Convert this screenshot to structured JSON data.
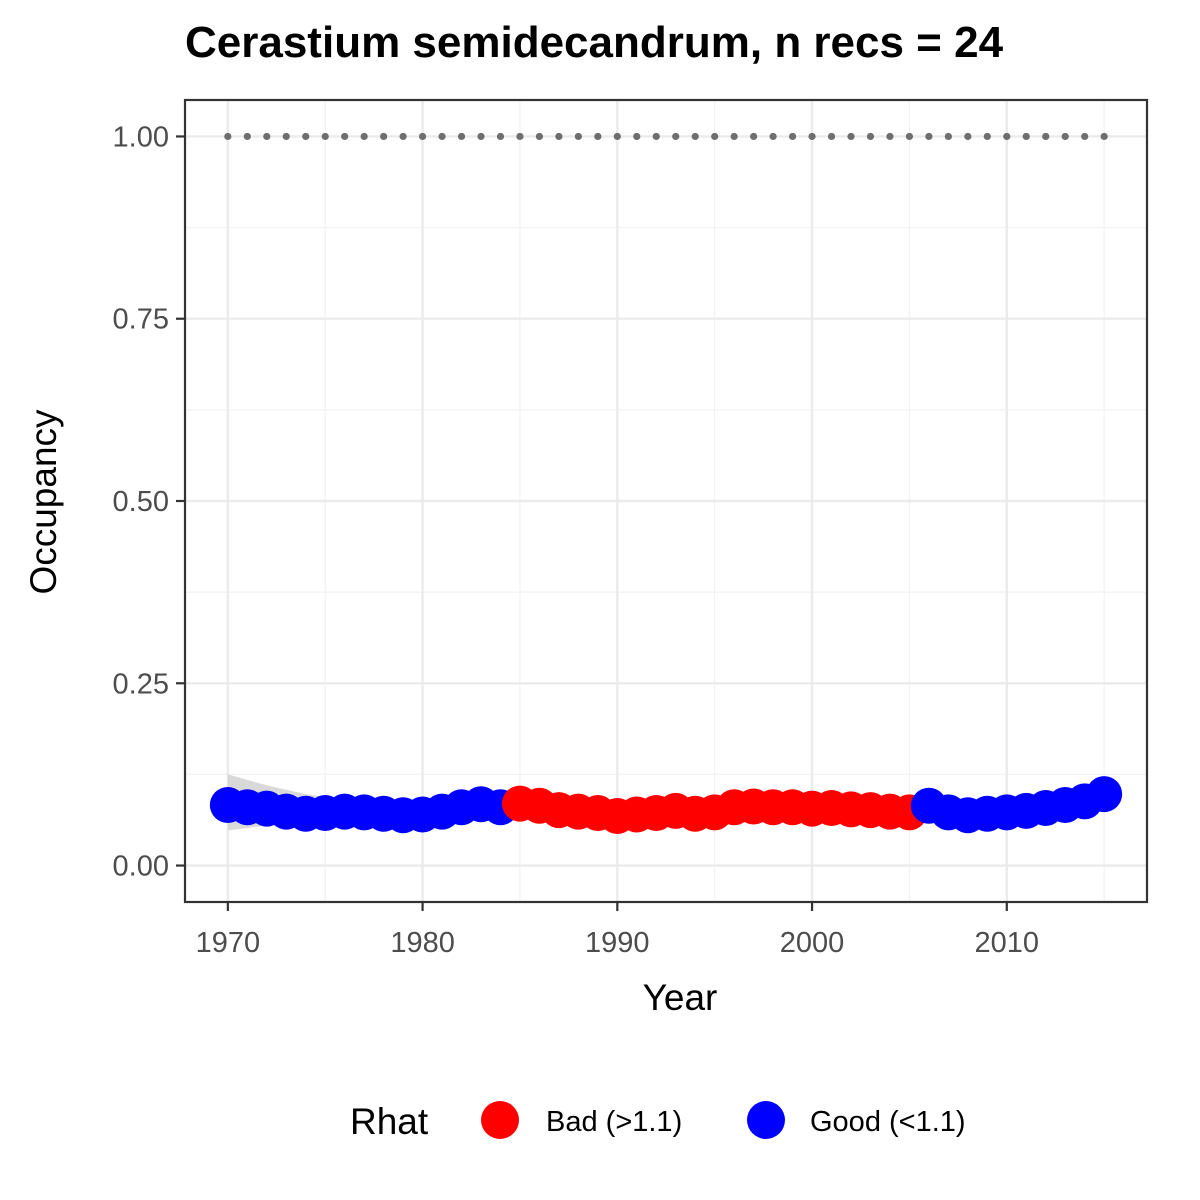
{
  "chart_data": {
    "type": "scatter",
    "title": "Cerastium semidecandrum, n recs = 24",
    "xlabel": "Year",
    "ylabel": "Occupancy",
    "xlim": [
      1967.8,
      2017.2
    ],
    "ylim": [
      -0.05,
      1.05
    ],
    "x_ticks": [
      1970,
      1980,
      1990,
      2000,
      2010
    ],
    "x_tick_labels": [
      "1970",
      "1980",
      "1990",
      "2000",
      "2010"
    ],
    "y_ticks": [
      0,
      0.25,
      0.5,
      0.75,
      1.0
    ],
    "y_tick_labels": [
      "0.00",
      "0.25",
      "0.50",
      "0.75",
      "1.00"
    ],
    "grid": true,
    "legend": {
      "title": "Rhat",
      "position": "bottom",
      "entries": [
        {
          "label": "Bad (>1.1)",
          "color": "#ff0000"
        },
        {
          "label": "Good (<1.1)",
          "color": "#0000ff"
        }
      ]
    },
    "colors": {
      "bad": "#ff0000",
      "good": "#0000ff",
      "reference": "#6e6e6e",
      "ribbon": "#cccccc"
    },
    "reference_line": {
      "y": 1.0,
      "style": "dotted",
      "x_start": 1970,
      "x_end": 2015
    },
    "x": [
      1970,
      1971,
      1972,
      1973,
      1974,
      1975,
      1976,
      1977,
      1978,
      1979,
      1980,
      1981,
      1982,
      1983,
      1984,
      1985,
      1986,
      1987,
      1988,
      1989,
      1990,
      1991,
      1992,
      1993,
      1994,
      1995,
      1996,
      1997,
      1998,
      1999,
      2000,
      2001,
      2002,
      2003,
      2004,
      2005,
      2006,
      2007,
      2008,
      2009,
      2010,
      2011,
      2012,
      2013,
      2014,
      2015
    ],
    "y": [
      0.083,
      0.08,
      0.078,
      0.074,
      0.071,
      0.072,
      0.074,
      0.073,
      0.071,
      0.069,
      0.07,
      0.074,
      0.08,
      0.084,
      0.08,
      0.085,
      0.082,
      0.076,
      0.074,
      0.072,
      0.068,
      0.07,
      0.072,
      0.075,
      0.071,
      0.073,
      0.08,
      0.081,
      0.08,
      0.08,
      0.078,
      0.079,
      0.077,
      0.076,
      0.074,
      0.073,
      0.082,
      0.073,
      0.069,
      0.071,
      0.073,
      0.075,
      0.079,
      0.083,
      0.088,
      0.098
    ],
    "rhat": [
      "good",
      "good",
      "good",
      "good",
      "good",
      "good",
      "good",
      "good",
      "good",
      "good",
      "good",
      "good",
      "good",
      "good",
      "good",
      "bad",
      "bad",
      "bad",
      "bad",
      "bad",
      "bad",
      "bad",
      "bad",
      "bad",
      "bad",
      "bad",
      "bad",
      "bad",
      "bad",
      "bad",
      "bad",
      "bad",
      "bad",
      "bad",
      "bad",
      "bad",
      "good",
      "good",
      "good",
      "good",
      "good",
      "good",
      "good",
      "good",
      "good",
      "good"
    ],
    "ribbon": {
      "x": [
        1970,
        1972,
        1974,
        1976,
        1978,
        1980
      ],
      "upper": [
        0.125,
        0.11,
        0.098,
        0.09,
        0.085,
        0.083
      ],
      "lower": [
        0.048,
        0.055,
        0.058,
        0.06,
        0.061,
        0.062
      ]
    }
  }
}
